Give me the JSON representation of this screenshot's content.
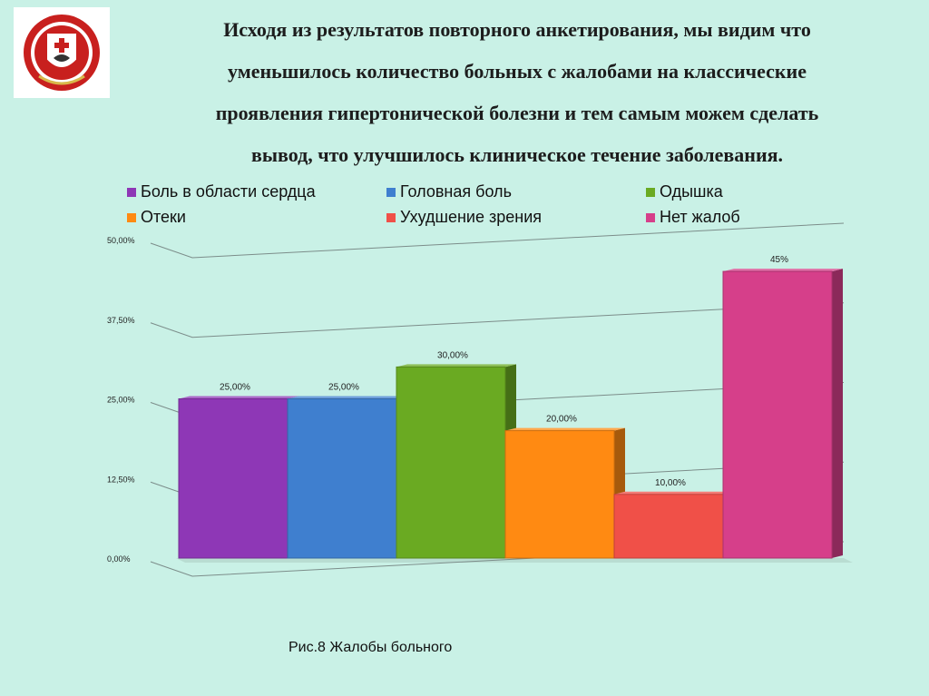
{
  "heading": {
    "lines": [
      "Исходя из результатов повторного анкетирования, мы видим что",
      "уменьшилось количество больных с жалобами на классические",
      "проявления гипертонической болезни и тем самым можем сделать",
      "вывод, что улучшилось клиническое течение заболевания."
    ]
  },
  "logo": {
    "icon": "university-emblem-icon"
  },
  "chart_data": {
    "type": "bar",
    "categories": [
      "Боль в области сердца",
      "Головная боль",
      "Одышка",
      "Отеки",
      "Ухудшение зрения",
      "Нет жалоб"
    ],
    "values": [
      25,
      25,
      30,
      20,
      10,
      45
    ],
    "data_labels": [
      "25,00%",
      "25,00%",
      "30,00%",
      "20,00%",
      "10,00%",
      "45%"
    ],
    "colors": [
      "#8e37b6",
      "#3f7fcf",
      "#6aaa22",
      "#ff8a12",
      "#f05048",
      "#d63f8a"
    ],
    "legend": {
      "placement": "top",
      "entries": [
        "Боль в области сердца",
        "Головная боль",
        "Одышка",
        "Отеки",
        "Ухудшение зрения",
        "Нет жалоб"
      ]
    },
    "yticks": [
      0,
      12.5,
      25,
      37.5,
      50
    ],
    "ytick_labels": [
      "0,00%",
      "12,50%",
      "25,00%",
      "37,50%",
      "50,00%"
    ],
    "ylim": [
      0,
      50
    ],
    "grid": true,
    "title": "",
    "xlabel": "",
    "ylabel": ""
  },
  "caption": "Рис.8 Жалобы больного"
}
